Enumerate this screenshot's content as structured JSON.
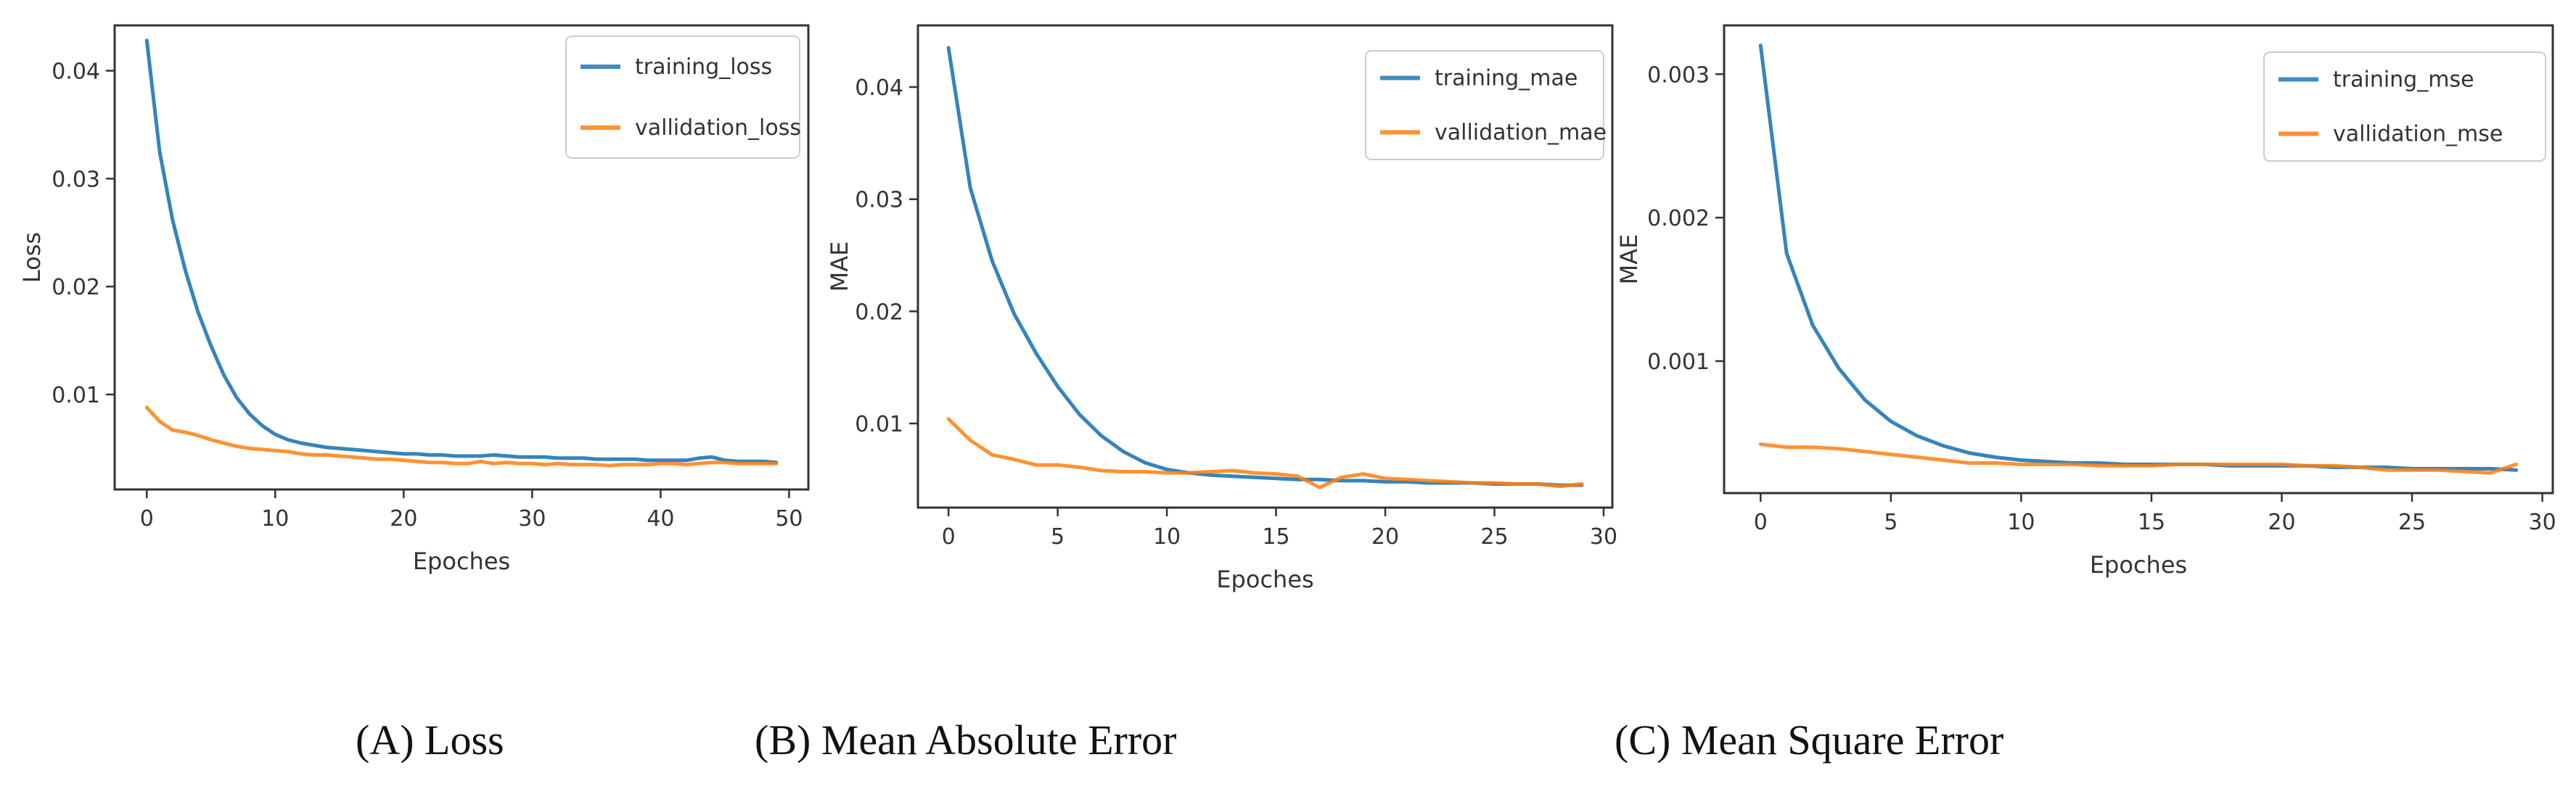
{
  "colors": {
    "training": "#1f77b4",
    "validation": "#ff7f0e",
    "background": "#ffffff",
    "axes": "#333333"
  },
  "chart_data": [
    {
      "type": "line",
      "caption": "(A) Loss",
      "xlabel": "Epoches",
      "ylabel": "Loss",
      "xlim": [
        -2.5,
        51.5
      ],
      "ylim": [
        0.0012,
        0.0442
      ],
      "xticks": [
        0,
        10,
        20,
        30,
        40,
        50
      ],
      "xtick_labels": [
        "0",
        "10",
        "20",
        "30",
        "40",
        "50"
      ],
      "yticks": [
        0.01,
        0.02,
        0.03,
        0.04
      ],
      "ytick_labels": [
        "0.01",
        "0.02",
        "0.03",
        "0.04"
      ],
      "grid": false,
      "legend": "top-right",
      "series": [
        {
          "name": "training_loss",
          "color": "#1f77b4",
          "x": [
            0,
            1,
            2,
            3,
            4,
            5,
            6,
            7,
            8,
            9,
            10,
            11,
            12,
            13,
            14,
            15,
            16,
            17,
            18,
            19,
            20,
            21,
            22,
            23,
            24,
            25,
            26,
            27,
            28,
            29,
            30,
            31,
            32,
            33,
            34,
            35,
            36,
            37,
            38,
            39,
            40,
            41,
            42,
            43,
            44,
            45,
            46,
            47,
            48,
            49
          ],
          "values": [
            0.0428,
            0.0325,
            0.0262,
            0.0215,
            0.0176,
            0.0145,
            0.0118,
            0.0097,
            0.0082,
            0.0071,
            0.0063,
            0.0058,
            0.0055,
            0.0053,
            0.0051,
            0.005,
            0.0049,
            0.0048,
            0.0047,
            0.0046,
            0.0045,
            0.0045,
            0.0044,
            0.0044,
            0.0043,
            0.0043,
            0.0043,
            0.0044,
            0.0043,
            0.0042,
            0.0042,
            0.0042,
            0.0041,
            0.0041,
            0.0041,
            0.004,
            0.004,
            0.004,
            0.004,
            0.0039,
            0.0039,
            0.0039,
            0.0039,
            0.0041,
            0.0042,
            0.0039,
            0.0038,
            0.0038,
            0.0038,
            0.0037
          ]
        },
        {
          "name": "vallidation_loss",
          "color": "#ff7f0e",
          "x": [
            0,
            1,
            2,
            3,
            4,
            5,
            6,
            7,
            8,
            9,
            10,
            11,
            12,
            13,
            14,
            15,
            16,
            17,
            18,
            19,
            20,
            21,
            22,
            23,
            24,
            25,
            26,
            27,
            28,
            29,
            30,
            31,
            32,
            33,
            34,
            35,
            36,
            37,
            38,
            39,
            40,
            41,
            42,
            43,
            44,
            45,
            46,
            47,
            48,
            49
          ],
          "values": [
            0.0088,
            0.0075,
            0.0067,
            0.0065,
            0.0062,
            0.0058,
            0.0055,
            0.0052,
            0.005,
            0.0049,
            0.0048,
            0.0047,
            0.0045,
            0.0044,
            0.0044,
            0.0043,
            0.0042,
            0.0041,
            0.004,
            0.004,
            0.0039,
            0.0038,
            0.0037,
            0.0037,
            0.0036,
            0.0036,
            0.0038,
            0.0036,
            0.0037,
            0.0036,
            0.0036,
            0.0035,
            0.0036,
            0.0035,
            0.0035,
            0.0035,
            0.0034,
            0.0035,
            0.0035,
            0.0035,
            0.0036,
            0.0036,
            0.0035,
            0.0036,
            0.0037,
            0.0037,
            0.0036,
            0.0036,
            0.0036,
            0.0036
          ]
        }
      ]
    },
    {
      "type": "line",
      "caption": "(B) Mean Absolute Error",
      "xlabel": "Epoches",
      "ylabel": "MAE",
      "xlim": [
        -1.4,
        30.4
      ],
      "ylim": [
        0.0025,
        0.0455
      ],
      "xticks": [
        0,
        5,
        10,
        15,
        20,
        25,
        30
      ],
      "xtick_labels": [
        "0",
        "5",
        "10",
        "15",
        "20",
        "25",
        "30"
      ],
      "yticks": [
        0.01,
        0.02,
        0.03,
        0.04
      ],
      "ytick_labels": [
        "0.01",
        "0.02",
        "0.03",
        "0.04"
      ],
      "grid": false,
      "legend": "top-right",
      "series": [
        {
          "name": "training_mae",
          "color": "#1f77b4",
          "x": [
            0,
            1,
            2,
            3,
            4,
            5,
            6,
            7,
            8,
            9,
            10,
            11,
            12,
            13,
            14,
            15,
            16,
            17,
            18,
            19,
            20,
            21,
            22,
            23,
            24,
            25,
            26,
            27,
            28,
            29
          ],
          "values": [
            0.0435,
            0.031,
            0.0245,
            0.0198,
            0.0163,
            0.0133,
            0.0108,
            0.0089,
            0.0075,
            0.0065,
            0.0059,
            0.0056,
            0.0054,
            0.0053,
            0.0052,
            0.0051,
            0.005,
            0.005,
            0.0049,
            0.0049,
            0.0048,
            0.0048,
            0.0047,
            0.0047,
            0.0047,
            0.0046,
            0.0046,
            0.0046,
            0.0045,
            0.0045
          ]
        },
        {
          "name": "vallidation_mae",
          "color": "#ff7f0e",
          "x": [
            0,
            1,
            2,
            3,
            4,
            5,
            6,
            7,
            8,
            9,
            10,
            11,
            12,
            13,
            14,
            15,
            16,
            17,
            18,
            19,
            20,
            21,
            22,
            23,
            24,
            25,
            26,
            27,
            28,
            29
          ],
          "values": [
            0.0104,
            0.0085,
            0.0072,
            0.0068,
            0.0063,
            0.0063,
            0.0061,
            0.0058,
            0.0057,
            0.0057,
            0.0056,
            0.0056,
            0.0057,
            0.0058,
            0.0056,
            0.0055,
            0.0053,
            0.0043,
            0.0052,
            0.0055,
            0.0051,
            0.005,
            0.0049,
            0.0048,
            0.0047,
            0.0047,
            0.0046,
            0.0046,
            0.0044,
            0.0046
          ]
        }
      ]
    },
    {
      "type": "line",
      "caption": "(C) Mean Square Error",
      "xlabel": "Epoches",
      "ylabel": "MAE",
      "xlim": [
        -1.4,
        30.4
      ],
      "ylim": [
        8e-05,
        0.00334
      ],
      "xticks": [
        0,
        5,
        10,
        15,
        20,
        25,
        30
      ],
      "xtick_labels": [
        "0",
        "5",
        "10",
        "15",
        "20",
        "25",
        "30"
      ],
      "yticks": [
        0.001,
        0.002,
        0.003
      ],
      "ytick_labels": [
        "0.001",
        "0.002",
        "0.003"
      ],
      "grid": false,
      "legend": "top-right",
      "series": [
        {
          "name": "training_mse",
          "color": "#1f77b4",
          "x": [
            0,
            1,
            2,
            3,
            4,
            5,
            6,
            7,
            8,
            9,
            10,
            11,
            12,
            13,
            14,
            15,
            16,
            17,
            18,
            19,
            20,
            21,
            22,
            23,
            24,
            25,
            26,
            27,
            28,
            29
          ],
          "values": [
            0.0032,
            0.00175,
            0.00125,
            0.00095,
            0.00073,
            0.00058,
            0.00048,
            0.00041,
            0.00036,
            0.00033,
            0.00031,
            0.0003,
            0.00029,
            0.00029,
            0.00028,
            0.00028,
            0.00028,
            0.00028,
            0.00027,
            0.00027,
            0.00027,
            0.00027,
            0.00026,
            0.00026,
            0.00026,
            0.00025,
            0.00025,
            0.00025,
            0.00025,
            0.00024
          ]
        },
        {
          "name": "vallidation_mse",
          "color": "#ff7f0e",
          "x": [
            0,
            1,
            2,
            3,
            4,
            5,
            6,
            7,
            8,
            9,
            10,
            11,
            12,
            13,
            14,
            15,
            16,
            17,
            18,
            19,
            20,
            21,
            22,
            23,
            24,
            25,
            26,
            27,
            28,
            29
          ],
          "values": [
            0.00042,
            0.0004,
            0.0004,
            0.00039,
            0.00037,
            0.00035,
            0.00033,
            0.00031,
            0.00029,
            0.00029,
            0.00028,
            0.00028,
            0.00028,
            0.00027,
            0.00027,
            0.00027,
            0.00028,
            0.00028,
            0.00028,
            0.00028,
            0.00028,
            0.00027,
            0.00027,
            0.00026,
            0.00024,
            0.00024,
            0.00024,
            0.00023,
            0.00022,
            0.00028
          ]
        }
      ]
    }
  ]
}
